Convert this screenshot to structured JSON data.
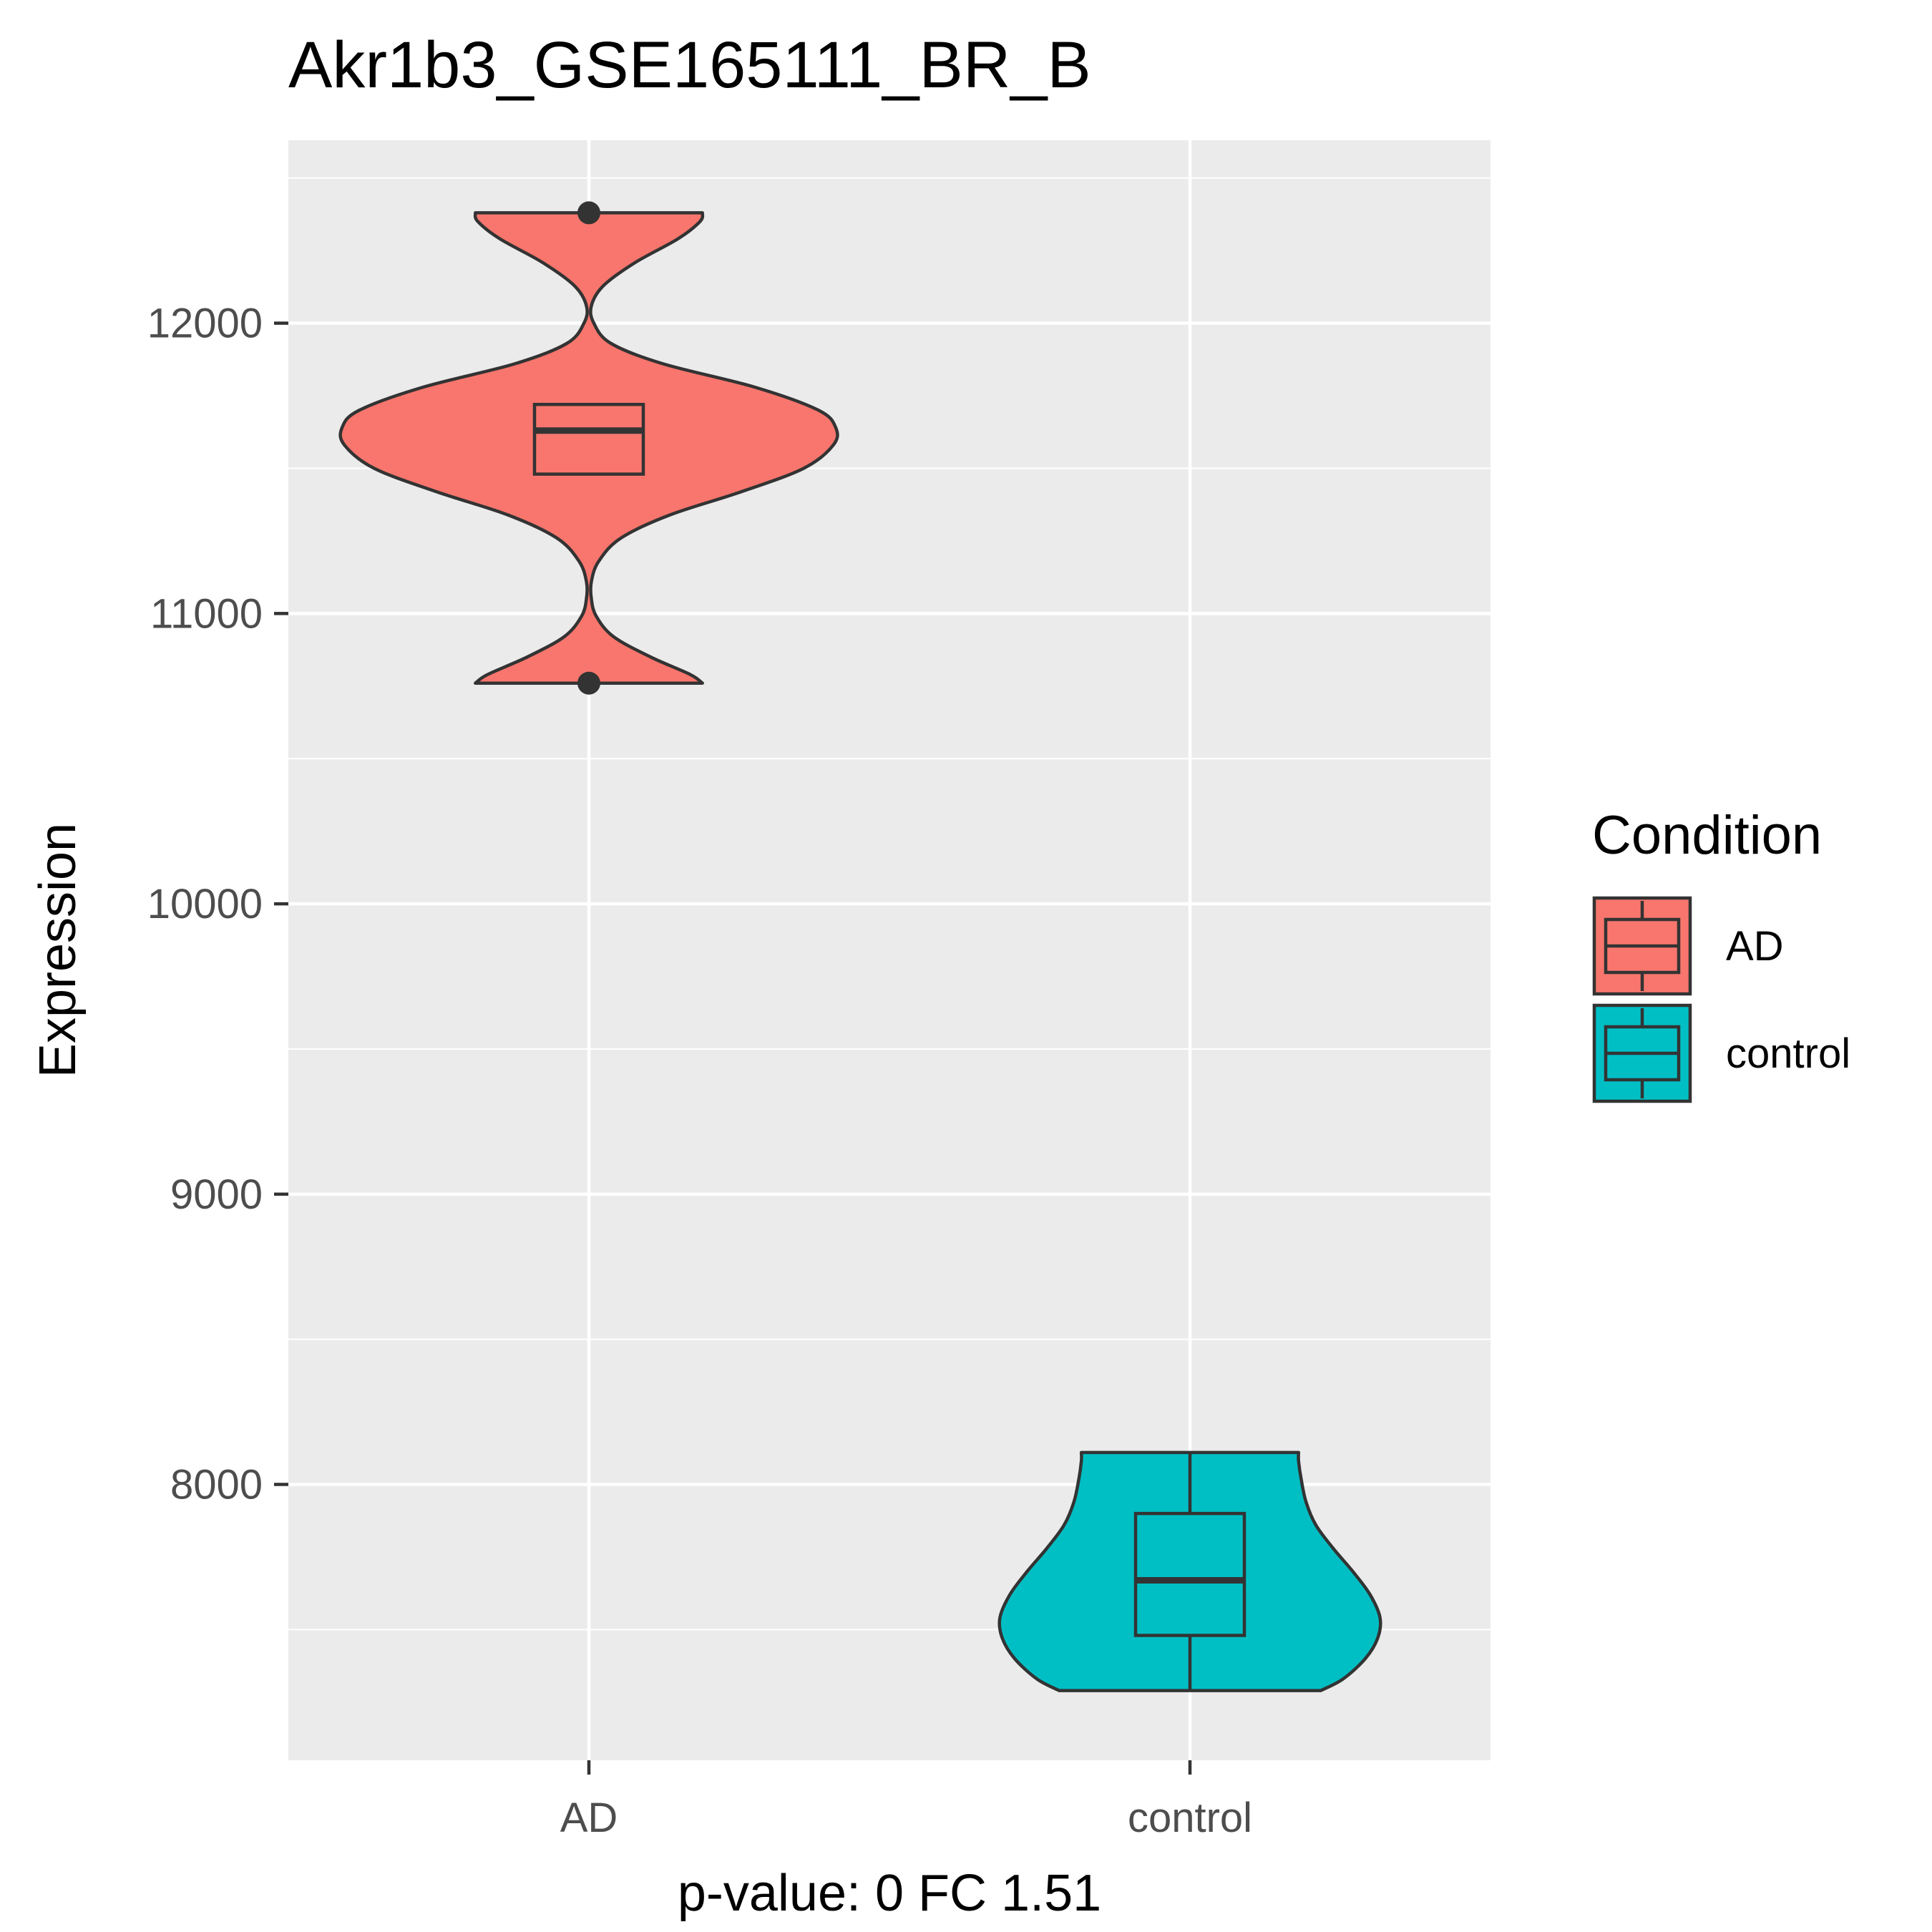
{
  "chart_data": {
    "type": "violin",
    "title": "Akr1b3_GSE165111_BR_B",
    "xlabel": "p-value: 0 FC 1.51",
    "ylabel": "Expression",
    "categories": [
      "AD",
      "control"
    ],
    "ylim": [
      7050,
      12630
    ],
    "y_ticks": [
      8000,
      9000,
      10000,
      11000,
      12000
    ],
    "y_tick_labels": [
      "8000",
      "9000",
      "10000",
      "11000",
      "12000"
    ],
    "grid": true,
    "legend": {
      "title": "Condition",
      "position": "right",
      "entries": [
        "AD",
        "control"
      ]
    },
    "series": [
      {
        "name": "AD",
        "color": "#F8766D",
        "violin": {
          "min": 10760,
          "max": 12380,
          "density_profile": [
            [
              10760,
              0.46
            ],
            [
              10790,
              0.41
            ],
            [
              10850,
              0.25
            ],
            [
              10920,
              0.1
            ],
            [
              10990,
              0.03
            ],
            [
              11050,
              0.01
            ],
            [
              11110,
              0.01
            ],
            [
              11180,
              0.04
            ],
            [
              11260,
              0.13
            ],
            [
              11340,
              0.33
            ],
            [
              11420,
              0.62
            ],
            [
              11500,
              0.87
            ],
            [
              11580,
              0.99
            ],
            [
              11640,
              1.0
            ],
            [
              11700,
              0.93
            ],
            [
              11780,
              0.67
            ],
            [
              11860,
              0.3
            ],
            [
              11930,
              0.09
            ],
            [
              12000,
              0.02
            ],
            [
              12060,
              0.01
            ],
            [
              12130,
              0.06
            ],
            [
              12210,
              0.19
            ],
            [
              12290,
              0.36
            ],
            [
              12350,
              0.45
            ],
            [
              12380,
              0.46
            ]
          ]
        },
        "box": {
          "lower_whisker": 11480,
          "q1": 11480,
          "median": 11630,
          "q3": 11720,
          "upper_whisker": 11720
        },
        "outliers": [
          12380,
          10760
        ]
      },
      {
        "name": "control",
        "color": "#00BFC4",
        "violin": {
          "min": 7290,
          "max": 8110,
          "density_profile": [
            [
              7290,
              0.53
            ],
            [
              7330,
              0.62
            ],
            [
              7400,
              0.71
            ],
            [
              7470,
              0.76
            ],
            [
              7540,
              0.77
            ],
            [
              7620,
              0.73
            ],
            [
              7700,
              0.66
            ],
            [
              7780,
              0.58
            ],
            [
              7860,
              0.51
            ],
            [
              7940,
              0.47
            ],
            [
              8020,
              0.45
            ],
            [
              8080,
              0.44
            ],
            [
              8110,
              0.44
            ]
          ]
        },
        "box": {
          "lower_whisker": 7290,
          "q1": 7480,
          "median": 7670,
          "q3": 7900,
          "upper_whisker": 8110
        },
        "outliers": []
      }
    ],
    "colors": {
      "panel": "#EBEBEB",
      "grid": "#FFFFFF",
      "outline": "#333333"
    }
  }
}
